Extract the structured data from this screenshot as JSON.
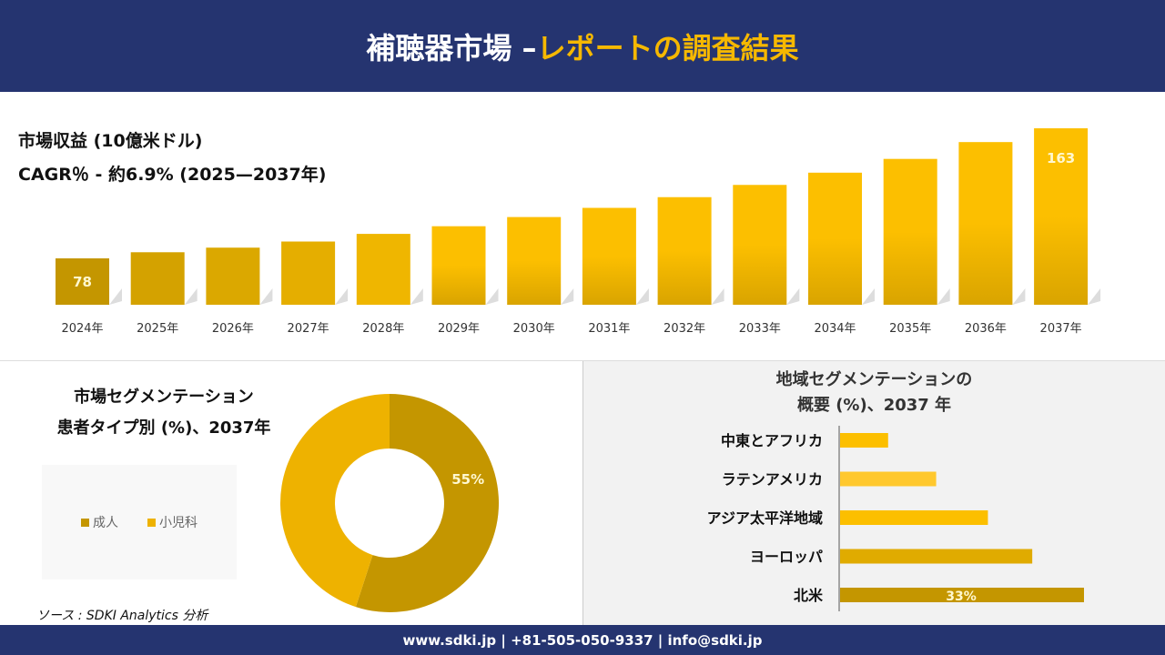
{
  "header": {
    "title_main": "補聴器市場 –",
    "title_highlight": "レポートの調査結果"
  },
  "chart_data": [
    {
      "type": "bar",
      "title": "市場収益 (10億米ドル)",
      "subtitle": "CAGR％ - 約6.9% (2025—2037年)",
      "categories": [
        "2024年",
        "2025年",
        "2026年",
        "2027年",
        "2028年",
        "2029年",
        "2030年",
        "2031年",
        "2032年",
        "2033年",
        "2034年",
        "2035年",
        "2036年",
        "2037年"
      ],
      "values": [
        78,
        82,
        85,
        89,
        94,
        99,
        105,
        111,
        118,
        126,
        134,
        143,
        154,
        163
      ],
      "data_labels": {
        "0": "78",
        "13": "163"
      },
      "colors": [
        "#c49600",
        "#d4a200",
        "#dba800",
        "#e5ae00",
        "#efb600",
        "#fcbf00",
        "#fcbf00",
        "#fcbf00",
        "#fcbf00",
        "#fcbf00",
        "#fcbf00",
        "#fcbf00",
        "#fcbf00",
        "#fcbf00"
      ]
    },
    {
      "type": "pie",
      "title_line1": "市場セグメンテーション",
      "title_line2": "患者タイプ別 (%)、2037年",
      "categories": [
        "成人",
        "小児科"
      ],
      "values": [
        55,
        45
      ],
      "data_labels": [
        "55%",
        ""
      ],
      "colors": [
        "#c49600",
        "#eeb200"
      ],
      "legend": "left"
    },
    {
      "type": "bar",
      "orientation": "horizontal",
      "title_line1": "地域セグメンテーションの",
      "title_line2": "概要 (%)、2037 年",
      "categories": [
        "中東とアフリカ",
        "ラテンアメリカ",
        "アジア太平洋地域",
        "ヨーロッパ",
        "北米"
      ],
      "values": [
        6.5,
        13,
        20,
        26,
        33
      ],
      "data_labels": [
        "",
        "",
        "",
        "",
        "33%"
      ],
      "colors": [
        "#fcbf00",
        "#ffc82e",
        "#fcbf00",
        "#e0ab00",
        "#c49600"
      ]
    }
  ],
  "source": "ソース : SDKI Analytics 分析",
  "footer": "www.sdki.jp | +81-505-050-9337 | info@sdki.jp"
}
